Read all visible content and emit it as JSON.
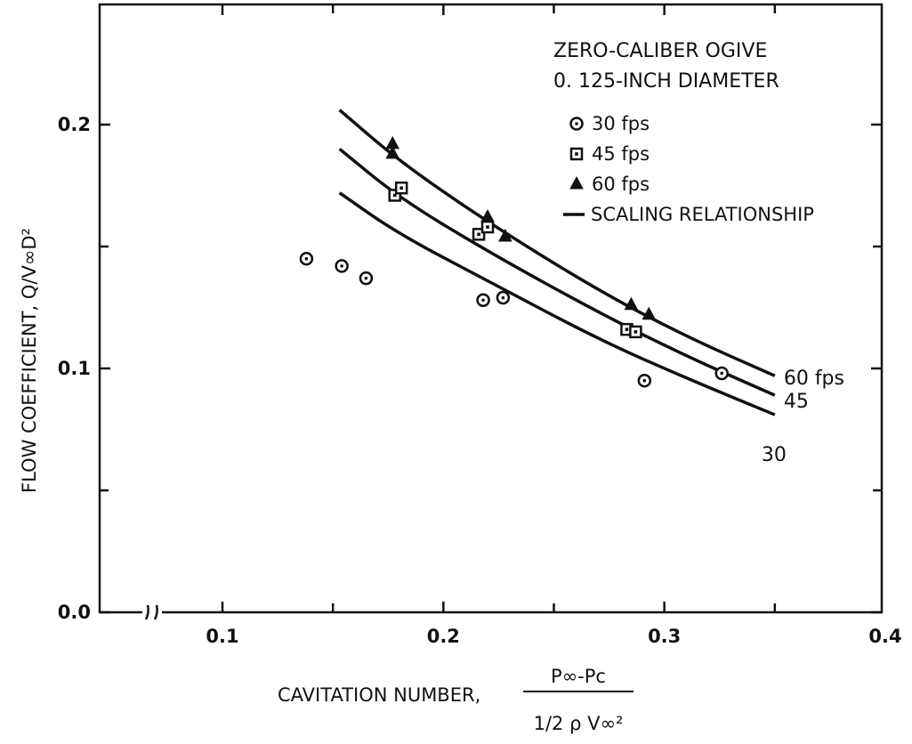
{
  "chart_data": {
    "type": "scatter",
    "title_lines": [
      "ZERO-CALIBER OGIVE",
      "0. 125-INCH DIAMETER"
    ],
    "xlabel_prefix": "CAVITATION NUMBER,",
    "xlabel_num": "P∞-Pc",
    "xlabel_den": "1/2 ρ V∞²",
    "ylabel": "FLOW COEFFICIENT,  Q/V∞D²",
    "xlim": [
      0.05,
      0.4
    ],
    "ylim": [
      0.0,
      0.2
    ],
    "xticks": [
      {
        "v": 0.1,
        "label": "0.1"
      },
      {
        "v": 0.2,
        "label": "0.2"
      },
      {
        "v": 0.3,
        "label": "0.3"
      },
      {
        "v": 0.4,
        "label": "0.4"
      }
    ],
    "yticks": [
      {
        "v": 0.0,
        "label": "0.0"
      },
      {
        "v": 0.1,
        "label": "0.1"
      },
      {
        "v": 0.2,
        "label": "0.2"
      }
    ],
    "minor_yticks": [
      0.05,
      0.15,
      0.25
    ],
    "minor_xticks": [
      0.15,
      0.25,
      0.35
    ],
    "series": [
      {
        "name": "30 fps",
        "marker": "circle",
        "points": [
          [
            0.138,
            0.145
          ],
          [
            0.154,
            0.142
          ],
          [
            0.165,
            0.137
          ],
          [
            0.218,
            0.128
          ],
          [
            0.227,
            0.129
          ],
          [
            0.291,
            0.095
          ],
          [
            0.326,
            0.098
          ]
        ]
      },
      {
        "name": "45 fps",
        "marker": "square",
        "points": [
          [
            0.178,
            0.171
          ],
          [
            0.181,
            0.174
          ],
          [
            0.216,
            0.155
          ],
          [
            0.22,
            0.158
          ],
          [
            0.283,
            0.116
          ],
          [
            0.287,
            0.115
          ]
        ]
      },
      {
        "name": "60 fps",
        "marker": "triangle",
        "points": [
          [
            0.177,
            0.192
          ],
          [
            0.177,
            0.188
          ],
          [
            0.22,
            0.162
          ],
          [
            0.228,
            0.154
          ],
          [
            0.285,
            0.126
          ],
          [
            0.293,
            0.122
          ]
        ]
      }
    ],
    "curves": [
      {
        "name": "60 fps",
        "end_label": "60 fps",
        "points": [
          [
            0.153,
            0.206
          ],
          [
            0.18,
            0.185
          ],
          [
            0.22,
            0.16
          ],
          [
            0.27,
            0.132
          ],
          [
            0.31,
            0.113
          ],
          [
            0.35,
            0.097
          ]
        ]
      },
      {
        "name": "45",
        "end_label": "45",
        "points": [
          [
            0.153,
            0.19
          ],
          [
            0.18,
            0.17
          ],
          [
            0.22,
            0.148
          ],
          [
            0.27,
            0.123
          ],
          [
            0.31,
            0.105
          ],
          [
            0.35,
            0.089
          ]
        ]
      },
      {
        "name": "30",
        "end_label": "30",
        "points": [
          [
            0.153,
            0.172
          ],
          [
            0.18,
            0.155
          ],
          [
            0.22,
            0.136
          ],
          [
            0.27,
            0.112
          ],
          [
            0.31,
            0.096
          ],
          [
            0.35,
            0.081
          ]
        ]
      }
    ],
    "legend": [
      {
        "marker": "circle",
        "label": "30 fps"
      },
      {
        "marker": "square",
        "label": "45 fps"
      },
      {
        "marker": "triangle",
        "label": "60 fps"
      },
      {
        "marker": "line",
        "label": "SCALING RELATIONSHIP"
      }
    ],
    "legend_position": "top-right",
    "grid": false,
    "axis_break": true
  }
}
